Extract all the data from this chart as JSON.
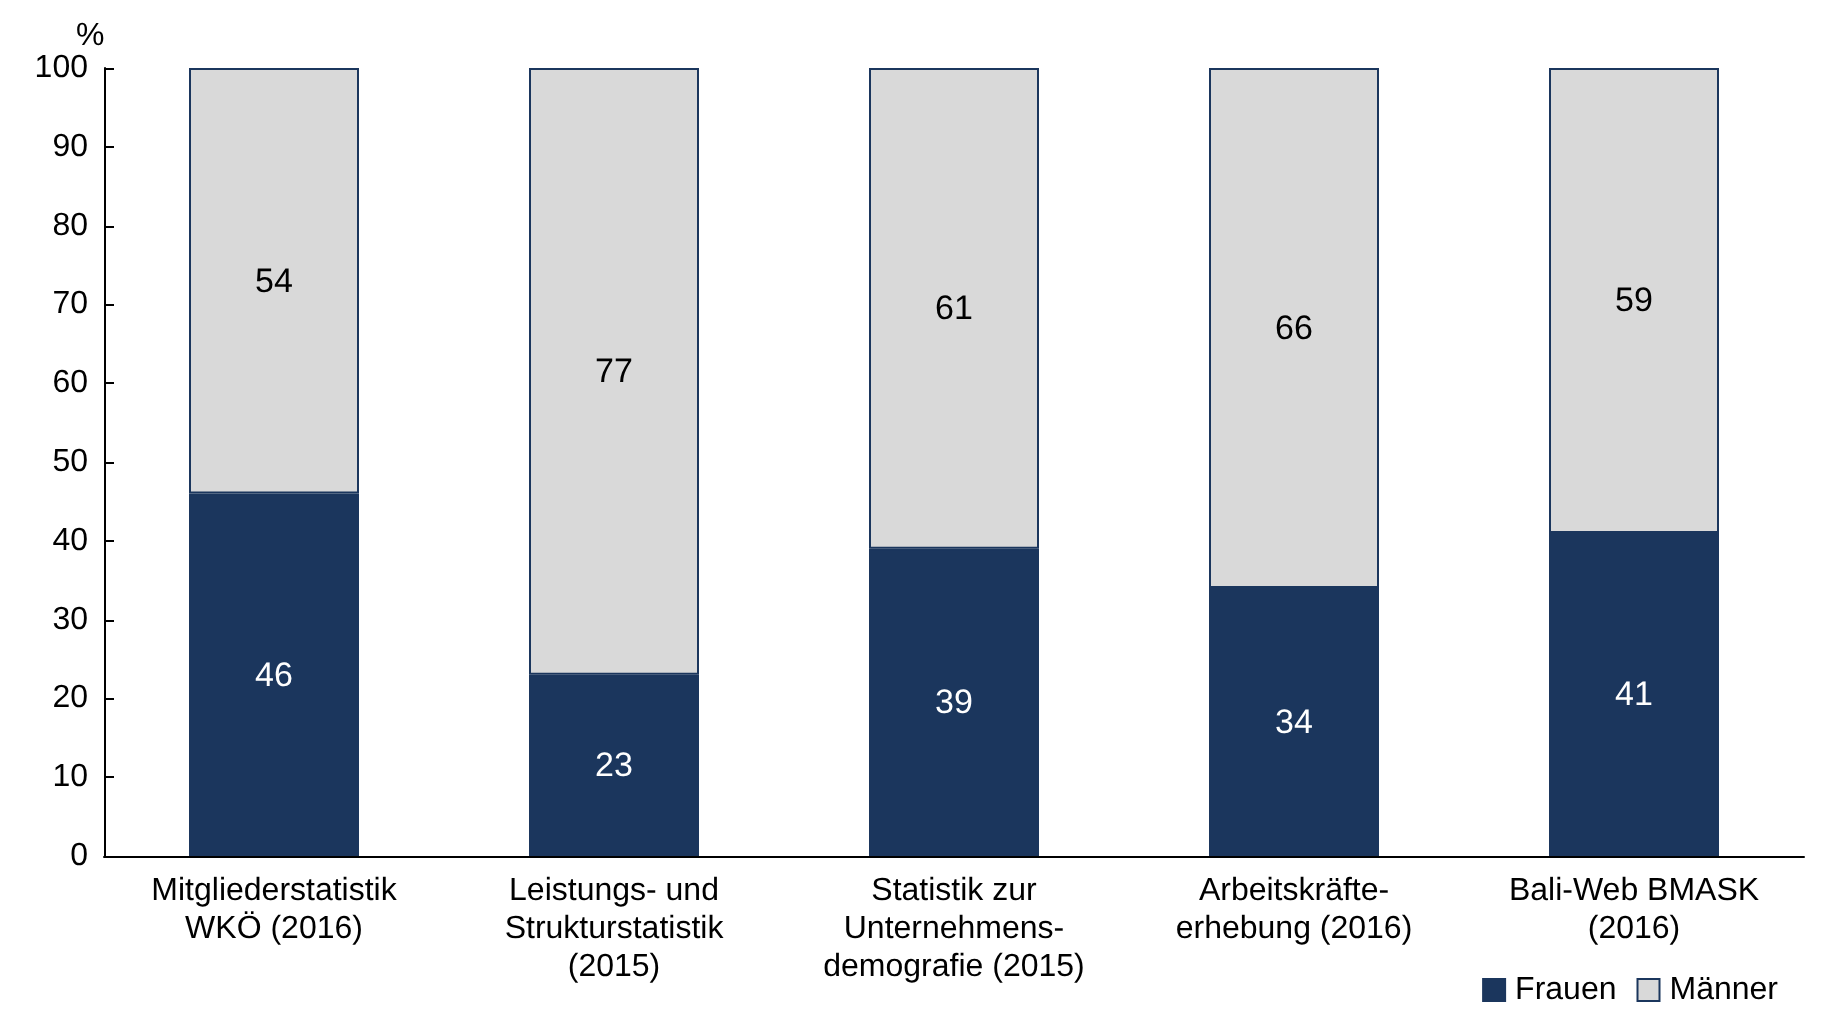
{
  "chart_data": {
    "type": "bar",
    "stacked": true,
    "ylabel": "%",
    "categories": [
      "Mitgliederstatistik\nWKÖ (2016)",
      "Leistungs- und\nStrukturstatistik\n(2015)",
      "Statistik zur\nUnternehmens-\ndemografie (2015)",
      "Arbeitskräfte-\nerhebung (2016)",
      "Bali-Web BMASK\n(2016)"
    ],
    "series": [
      {
        "name": "Frauen",
        "color": "#1b365d",
        "values": [
          46,
          23,
          39,
          34,
          41
        ]
      },
      {
        "name": "Männer",
        "color": "#d9d9d9",
        "values": [
          54,
          77,
          61,
          66,
          59
        ]
      }
    ],
    "ylim": [
      0,
      100
    ],
    "yticks": [
      0,
      10,
      20,
      30,
      40,
      50,
      60,
      70,
      80,
      90,
      100
    ],
    "grid": false,
    "legend": "bottom right",
    "data_labels": true
  }
}
